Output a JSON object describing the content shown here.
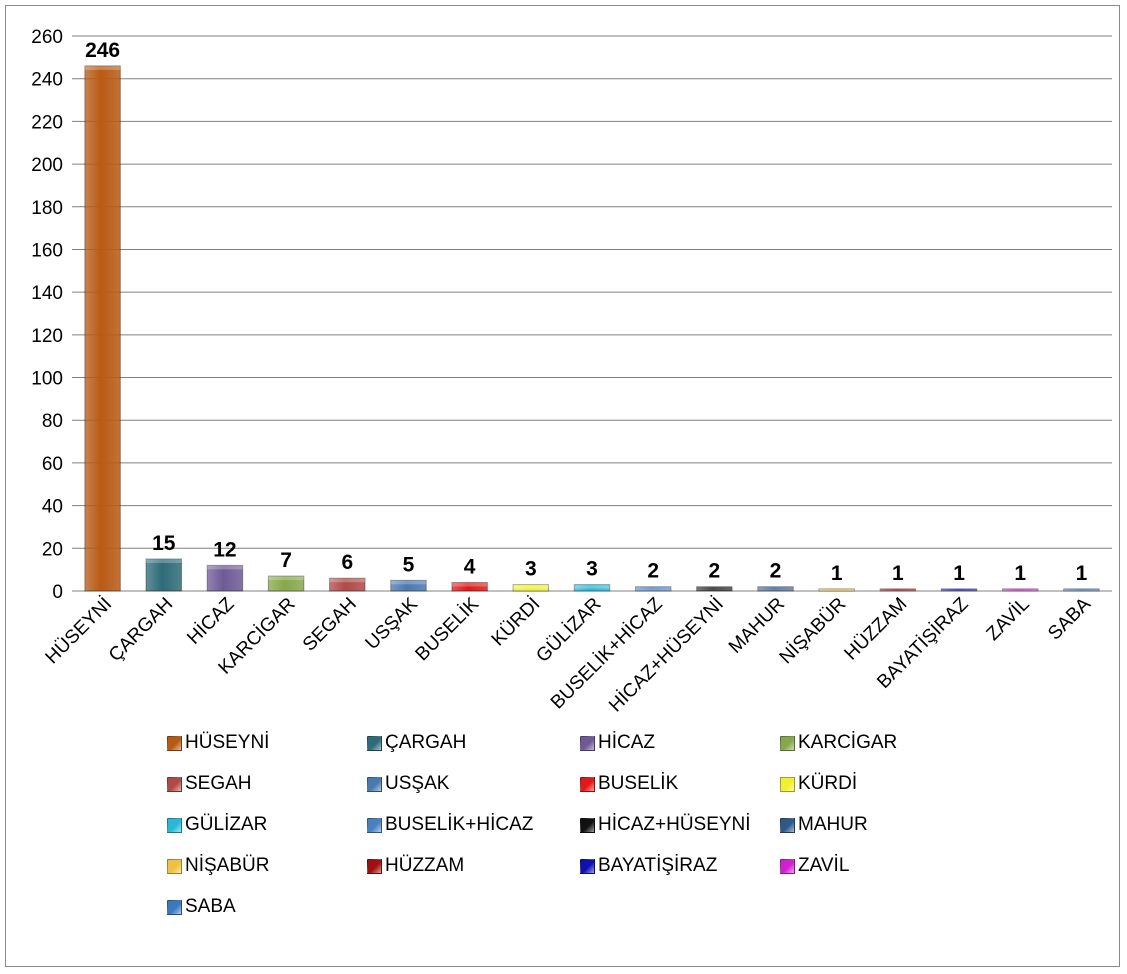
{
  "chart_data": {
    "type": "bar",
    "categories": [
      "HÜSEYNİ",
      "ÇARGAH",
      "HİCAZ",
      "KARCİGAR",
      "SEGAH",
      "USŞAK",
      "BUSELİK",
      "KÜRDİ",
      "GÜLİZAR",
      "BUSELİK+HİCAZ",
      "HİCAZ+HÜSEYNİ",
      "MAHUR",
      "NİŞABÜR",
      "HÜZZAM",
      "BAYATİŞİRAZ",
      "ZAVİL",
      "SABA"
    ],
    "values": [
      246,
      15,
      12,
      7,
      6,
      5,
      4,
      3,
      3,
      2,
      2,
      2,
      1,
      1,
      1,
      1,
      1
    ],
    "data_labels": [
      "246",
      "15",
      "12",
      "7",
      "6",
      "5",
      "4",
      "3",
      "3",
      "2",
      "2",
      "2",
      "1",
      "1",
      "1",
      "1",
      "1"
    ],
    "colors": [
      "#b85a14",
      "#2e6b78",
      "#6f5a96",
      "#86a84a",
      "#b04a48",
      "#4a78b0",
      "#e01a1a",
      "#f0f030",
      "#28b8d8",
      "#4a80c0",
      "#111111",
      "#2e5a8a",
      "#f0c040",
      "#a01010",
      "#1010b0",
      "#d020d0",
      "#3a78c0"
    ],
    "yticks": [
      "0",
      "20",
      "40",
      "60",
      "80",
      "100",
      "120",
      "140",
      "160",
      "180",
      "200",
      "220",
      "240",
      "260"
    ],
    "ylim": [
      0,
      260
    ],
    "grid": true,
    "legend_position": "bottom",
    "title": "",
    "xlabel": "",
    "ylabel": ""
  }
}
